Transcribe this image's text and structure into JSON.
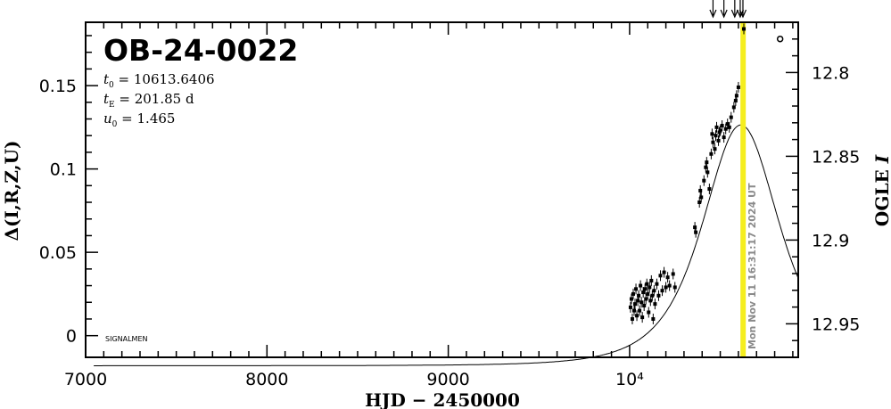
{
  "chart_data": {
    "type": "scatter",
    "title": "OB-24-0022",
    "xlabel": "HJD − 2450000",
    "ylabel_left": "Δ(I,R,Z,U)",
    "ylabel_right_prefix": "OGLE ",
    "ylabel_right_italic": "I",
    "xlim": [
      7000,
      10930
    ],
    "ylim_left": [
      -0.013,
      0.188
    ],
    "ylim_right": [
      12.97,
      12.77
    ],
    "x_ticks": [
      {
        "value": 7000,
        "label": "7000"
      },
      {
        "value": 8000,
        "label": "8000"
      },
      {
        "value": 9000,
        "label": "9000"
      },
      {
        "value": 10000,
        "label": "10⁴"
      }
    ],
    "y_left_ticks": [
      {
        "value": 0,
        "label": "0"
      },
      {
        "value": 0.05,
        "label": "0.05"
      },
      {
        "value": 0.1,
        "label": "0.1"
      },
      {
        "value": 0.15,
        "label": "0.15"
      }
    ],
    "y_right_ticks": [
      {
        "value": 12.8,
        "label": "12.8"
      },
      {
        "value": 12.85,
        "label": "12.85"
      },
      {
        "value": 12.9,
        "label": "12.9"
      },
      {
        "value": 12.95,
        "label": "12.95"
      }
    ],
    "parameters": {
      "t0": {
        "symbol": "t",
        "sub": "0",
        "text": " = 10613.6406"
      },
      "tE": {
        "symbol": "t",
        "sub": "E",
        "text": " = 201.85 d"
      },
      "u0": {
        "symbol": "u",
        "sub": "0",
        "text": " = 1.465"
      }
    },
    "model": {
      "t0": 10613.6406,
      "tE": 201.85,
      "u0": 1.465,
      "mag_base": 12.9568
    },
    "current_time": {
      "x": 10626,
      "label": "Mon Nov 11 16:31:17 2024 UT",
      "color": "#f5ee1e"
    },
    "annotation": "SIGNALMEN",
    "arrows_x": [
      10460,
      10520,
      10580,
      10610,
      10625
    ],
    "outlier_point": {
      "x": 10830,
      "y": 0.178
    },
    "observed_points": [
      {
        "x": 10005,
        "y": 0.017
      },
      {
        "x": 10010,
        "y": 0.022
      },
      {
        "x": 10015,
        "y": 0.01
      },
      {
        "x": 10020,
        "y": 0.025
      },
      {
        "x": 10025,
        "y": 0.015
      },
      {
        "x": 10030,
        "y": 0.019
      },
      {
        "x": 10035,
        "y": 0.028
      },
      {
        "x": 10040,
        "y": 0.012
      },
      {
        "x": 10045,
        "y": 0.021
      },
      {
        "x": 10050,
        "y": 0.024
      },
      {
        "x": 10055,
        "y": 0.015
      },
      {
        "x": 10060,
        "y": 0.03
      },
      {
        "x": 10065,
        "y": 0.02
      },
      {
        "x": 10070,
        "y": 0.011
      },
      {
        "x": 10075,
        "y": 0.026
      },
      {
        "x": 10080,
        "y": 0.018
      },
      {
        "x": 10085,
        "y": 0.028
      },
      {
        "x": 10090,
        "y": 0.022
      },
      {
        "x": 10095,
        "y": 0.031
      },
      {
        "x": 10100,
        "y": 0.025
      },
      {
        "x": 10105,
        "y": 0.014
      },
      {
        "x": 10110,
        "y": 0.029
      },
      {
        "x": 10115,
        "y": 0.021
      },
      {
        "x": 10120,
        "y": 0.033
      },
      {
        "x": 10125,
        "y": 0.024
      },
      {
        "x": 10130,
        "y": 0.01
      },
      {
        "x": 10135,
        "y": 0.027
      },
      {
        "x": 10140,
        "y": 0.019
      },
      {
        "x": 10150,
        "y": 0.031
      },
      {
        "x": 10160,
        "y": 0.024
      },
      {
        "x": 10170,
        "y": 0.036
      },
      {
        "x": 10180,
        "y": 0.027
      },
      {
        "x": 10190,
        "y": 0.038
      },
      {
        "x": 10200,
        "y": 0.029
      },
      {
        "x": 10210,
        "y": 0.035
      },
      {
        "x": 10220,
        "y": 0.03
      },
      {
        "x": 10240,
        "y": 0.037
      },
      {
        "x": 10250,
        "y": 0.029
      },
      {
        "x": 10360,
        "y": 0.065
      },
      {
        "x": 10365,
        "y": 0.062
      },
      {
        "x": 10385,
        "y": 0.08
      },
      {
        "x": 10390,
        "y": 0.087
      },
      {
        "x": 10395,
        "y": 0.083
      },
      {
        "x": 10410,
        "y": 0.093
      },
      {
        "x": 10420,
        "y": 0.101
      },
      {
        "x": 10425,
        "y": 0.104
      },
      {
        "x": 10430,
        "y": 0.098
      },
      {
        "x": 10440,
        "y": 0.088
      },
      {
        "x": 10450,
        "y": 0.109
      },
      {
        "x": 10455,
        "y": 0.121
      },
      {
        "x": 10460,
        "y": 0.116
      },
      {
        "x": 10470,
        "y": 0.112
      },
      {
        "x": 10475,
        "y": 0.12
      },
      {
        "x": 10480,
        "y": 0.125
      },
      {
        "x": 10490,
        "y": 0.117
      },
      {
        "x": 10495,
        "y": 0.122
      },
      {
        "x": 10500,
        "y": 0.123
      },
      {
        "x": 10510,
        "y": 0.126
      },
      {
        "x": 10520,
        "y": 0.119
      },
      {
        "x": 10530,
        "y": 0.124
      },
      {
        "x": 10540,
        "y": 0.127
      },
      {
        "x": 10550,
        "y": 0.125
      },
      {
        "x": 10560,
        "y": 0.131
      },
      {
        "x": 10575,
        "y": 0.137
      },
      {
        "x": 10585,
        "y": 0.141
      },
      {
        "x": 10590,
        "y": 0.144
      },
      {
        "x": 10600,
        "y": 0.149
      },
      {
        "x": 10630,
        "y": 0.184
      }
    ]
  }
}
